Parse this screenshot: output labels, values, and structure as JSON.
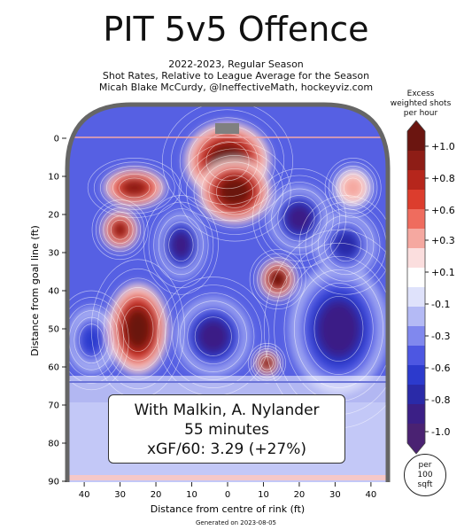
{
  "title": "PIT 5v5 Offence",
  "subtitle_lines": [
    "2022-2023, Regular Season",
    "Shot Rates, Relative to League Average for the Season",
    "Micah Blake McCurdy, @IneffectiveMath, hockeyviz.com"
  ],
  "info_box": {
    "line1": "With Malkin, A. Nylander",
    "line2": "55 minutes",
    "line3": "xGF/60: 3.29 (+27%)"
  },
  "colorbar": {
    "title_lines": [
      "Excess",
      "weighted shots",
      "per hour"
    ],
    "tick_labels": [
      "+1.0",
      "+0.8",
      "+0.6",
      "+0.3",
      "+0.1",
      "-0.1",
      "-0.3",
      "-0.6",
      "-0.8",
      "-1.0"
    ],
    "colors": [
      "#6b1510",
      "#8e1d16",
      "#b6261c",
      "#dc3d2d",
      "#ef6c5e",
      "#f5a8a0",
      "#fbdede",
      "#ffffff",
      "#dfe2fb",
      "#b4baf5",
      "#8088ee",
      "#4d57e2",
      "#2c3acd",
      "#2a2aa8",
      "#3b1f86",
      "#4a2272"
    ]
  },
  "per_unit_lines": [
    "per",
    "100",
    "sqft"
  ],
  "footer": "Generated on 2023-08-05",
  "chart_data": {
    "type": "heatmap",
    "title": "PIT 5v5 Offence",
    "xlabel": "Distance from centre of rink (ft)",
    "ylabel": "Distance from goal line (ft)",
    "x_ticks": [
      "40",
      "30",
      "20",
      "10",
      "0",
      "10",
      "20",
      "30",
      "40"
    ],
    "y_ticks": [
      "0",
      "10",
      "20",
      "30",
      "40",
      "50",
      "60",
      "70",
      "80",
      "90"
    ],
    "xlim": [
      -42.5,
      42.5
    ],
    "ylim": [
      0,
      90
    ],
    "value_range": [
      -1.0,
      1.0
    ],
    "background_level": -0.45,
    "hotspots": [
      {
        "x": 0,
        "y": 6,
        "value": 1.0,
        "rx": 7,
        "ry": 6
      },
      {
        "x": 2,
        "y": 14,
        "value": 1.0,
        "rx": 6,
        "ry": 5
      },
      {
        "x": -26,
        "y": 13,
        "value": 0.8,
        "rx": 5,
        "ry": 3
      },
      {
        "x": -30,
        "y": 24,
        "value": 0.9,
        "rx": 3,
        "ry": 3
      },
      {
        "x": -25,
        "y": 50,
        "value": 1.0,
        "rx": 5,
        "ry": 7
      },
      {
        "x": 14,
        "y": 37,
        "value": 1.0,
        "rx": 3,
        "ry": 3
      },
      {
        "x": 11,
        "y": 59,
        "value": 1.0,
        "rx": 2,
        "ry": 2
      },
      {
        "x": 35,
        "y": 13,
        "value": 0.4,
        "rx": 3,
        "ry": 3
      }
    ],
    "coldspots": [
      {
        "x": 20,
        "y": 21,
        "value": -0.9,
        "rx": 5,
        "ry": 5
      },
      {
        "x": -13,
        "y": 28,
        "value": -0.8,
        "rx": 4,
        "ry": 5
      },
      {
        "x": 31,
        "y": 50,
        "value": -0.9,
        "rx": 8,
        "ry": 10
      },
      {
        "x": -4,
        "y": 52,
        "value": -0.8,
        "rx": 6,
        "ry": 6
      },
      {
        "x": -38,
        "y": 53,
        "value": -0.6,
        "rx": 4,
        "ry": 5
      },
      {
        "x": 33,
        "y": 28,
        "value": -0.7,
        "rx": 5,
        "ry": 5
      }
    ],
    "legend": "right"
  }
}
